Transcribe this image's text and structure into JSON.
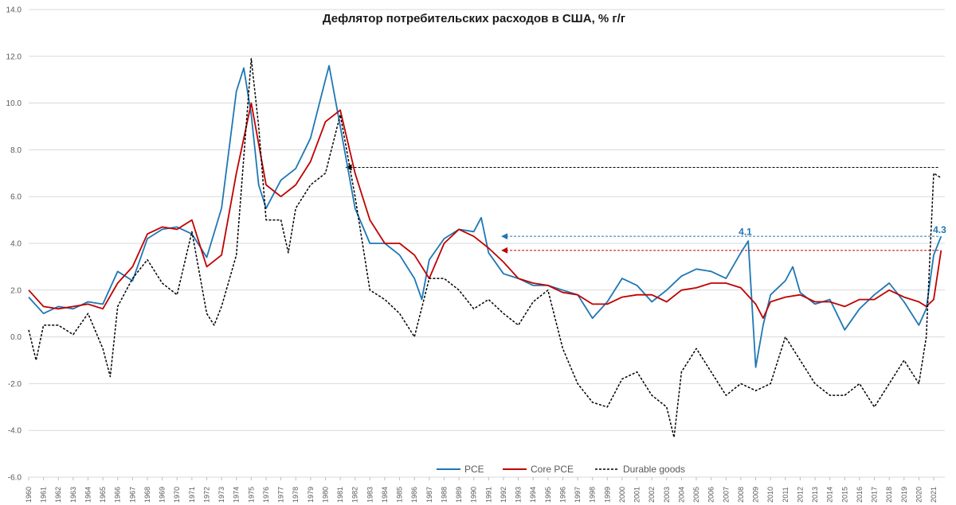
{
  "chart_data": {
    "type": "line",
    "title": "Дефлятор потребительских расходов в США, % г/г",
    "xlabel": "",
    "ylabel": "",
    "xlim": [
      1960,
      2021.75
    ],
    "ylim": [
      -6,
      14
    ],
    "y_ticks": [
      "-6.0",
      "-4.0",
      "-2.0",
      "0.0",
      "2.0",
      "4.0",
      "6.0",
      "8.0",
      "10.0",
      "12.0",
      "14.0"
    ],
    "x_ticks": [
      "1960",
      "1961",
      "1962",
      "1963",
      "1964",
      "1965",
      "1966",
      "1967",
      "1968",
      "1969",
      "1970",
      "1971",
      "1972",
      "1973",
      "1974",
      "1975",
      "1976",
      "1977",
      "1978",
      "1979",
      "1980",
      "1981",
      "1982",
      "1983",
      "1984",
      "1985",
      "1986",
      "1987",
      "1988",
      "1989",
      "1990",
      "1991",
      "1992",
      "1993",
      "1994",
      "1995",
      "1996",
      "1997",
      "1998",
      "1999",
      "2000",
      "2001",
      "2002",
      "2003",
      "2004",
      "2005",
      "2006",
      "2007",
      "2008",
      "2009",
      "2010",
      "2011",
      "2012",
      "2013",
      "2014",
      "2015",
      "2016",
      "2017",
      "2018",
      "2019",
      "2020",
      "2021"
    ],
    "grid": true,
    "legend_position": "bottom",
    "colors": {
      "pce": "#1f77b4",
      "core": "#c00000",
      "durable": "#000000",
      "grid": "#d9d9d9"
    },
    "series": [
      {
        "name": "PCE",
        "style": "solid",
        "x": [
          1960,
          1961,
          1962,
          1963,
          1964,
          1965,
          1966,
          1967,
          1968,
          1969,
          1970,
          1971,
          1972,
          1973,
          1974,
          1974.5,
          1975,
          1975.5,
          1976,
          1977,
          1978,
          1979,
          1980,
          1980.25,
          1981,
          1982,
          1983,
          1984,
          1985,
          1986,
          1986.5,
          1987,
          1988,
          1989,
          1990,
          1990.5,
          1991,
          1992,
          1993,
          1994,
          1995,
          1996,
          1997,
          1998,
          1999,
          2000,
          2001,
          2002,
          2003,
          2004,
          2005,
          2006,
          2007,
          2008,
          2008.5,
          2009,
          2009.5,
          2010,
          2011,
          2011.5,
          2012,
          2013,
          2014,
          2015,
          2016,
          2017,
          2018,
          2019,
          2020,
          2020.5,
          2021,
          2021.5
        ],
        "values": [
          1.7,
          1.0,
          1.3,
          1.2,
          1.5,
          1.4,
          2.8,
          2.4,
          4.2,
          4.6,
          4.7,
          4.4,
          3.4,
          5.5,
          10.5,
          11.5,
          9.5,
          6.5,
          5.5,
          6.7,
          7.2,
          8.5,
          11.0,
          11.6,
          9.0,
          5.5,
          4.0,
          4.0,
          3.5,
          2.5,
          1.6,
          3.3,
          4.2,
          4.6,
          4.5,
          5.1,
          3.6,
          2.7,
          2.5,
          2.2,
          2.2,
          2.0,
          1.8,
          0.8,
          1.5,
          2.5,
          2.2,
          1.5,
          2.0,
          2.6,
          2.9,
          2.8,
          2.5,
          3.6,
          4.1,
          -1.3,
          0.5,
          1.8,
          2.4,
          3.0,
          1.9,
          1.4,
          1.6,
          0.3,
          1.2,
          1.8,
          2.3,
          1.5,
          0.5,
          1.2,
          3.5,
          4.3
        ]
      },
      {
        "name": "Core PCE",
        "style": "solid",
        "x": [
          1960,
          1961,
          1962,
          1963,
          1964,
          1965,
          1966,
          1967,
          1968,
          1969,
          1970,
          1971,
          1972,
          1973,
          1974,
          1975,
          1976,
          1977,
          1978,
          1979,
          1980,
          1981,
          1982,
          1983,
          1984,
          1985,
          1986,
          1987,
          1988,
          1989,
          1990,
          1991,
          1992,
          1993,
          1994,
          1995,
          1996,
          1997,
          1998,
          1999,
          2000,
          2001,
          2002,
          2003,
          2004,
          2005,
          2006,
          2007,
          2008,
          2009,
          2009.5,
          2010,
          2011,
          2012,
          2013,
          2014,
          2015,
          2016,
          2017,
          2018,
          2019,
          2020,
          2020.5,
          2021,
          2021.5
        ],
        "values": [
          2.0,
          1.3,
          1.2,
          1.3,
          1.4,
          1.2,
          2.3,
          3.0,
          4.4,
          4.7,
          4.6,
          5.0,
          3.0,
          3.5,
          7.0,
          10.0,
          6.5,
          6.0,
          6.5,
          7.5,
          9.2,
          9.7,
          7.0,
          5.0,
          4.0,
          4.0,
          3.5,
          2.5,
          4.0,
          4.6,
          4.3,
          3.8,
          3.2,
          2.5,
          2.3,
          2.2,
          1.9,
          1.8,
          1.4,
          1.4,
          1.7,
          1.8,
          1.8,
          1.5,
          2.0,
          2.1,
          2.3,
          2.3,
          2.1,
          1.4,
          0.8,
          1.5,
          1.7,
          1.8,
          1.5,
          1.5,
          1.3,
          1.6,
          1.6,
          2.0,
          1.7,
          1.5,
          1.3,
          1.6,
          3.7
        ]
      },
      {
        "name": "Durable goods",
        "style": "dashed",
        "x": [
          1960,
          1960.5,
          1961,
          1962,
          1963,
          1964,
          1965,
          1965.5,
          1966,
          1967,
          1968,
          1969,
          1970,
          1971,
          1972,
          1972.5,
          1973,
          1974,
          1975,
          1975.5,
          1976,
          1977,
          1977.5,
          1978,
          1979,
          1980,
          1981,
          1982,
          1983,
          1984,
          1985,
          1986,
          1987,
          1988,
          1989,
          1990,
          1991,
          1992,
          1993,
          1994,
          1995,
          1996,
          1997,
          1998,
          1999,
          2000,
          2001,
          2002,
          2003,
          2003.5,
          2004,
          2005,
          2006,
          2007,
          2008,
          2009,
          2010,
          2011,
          2012,
          2013,
          2014,
          2015,
          2016,
          2017,
          2018,
          2019,
          2020,
          2020.5,
          2021,
          2021.5
        ],
        "values": [
          0.3,
          -1.0,
          0.5,
          0.5,
          0.1,
          1.0,
          -0.5,
          -1.7,
          1.3,
          2.5,
          3.3,
          2.3,
          1.8,
          4.5,
          1.0,
          0.5,
          1.3,
          3.5,
          11.9,
          9.0,
          5.0,
          5.0,
          3.6,
          5.5,
          6.5,
          7.0,
          9.5,
          6.0,
          2.0,
          1.6,
          1.0,
          0.0,
          2.5,
          2.5,
          2.0,
          1.2,
          1.6,
          1.0,
          0.5,
          1.5,
          2.0,
          -0.5,
          -2.0,
          -2.8,
          -3.0,
          -1.8,
          -1.5,
          -2.5,
          -3.0,
          -4.3,
          -1.5,
          -0.5,
          -1.5,
          -2.5,
          -2.0,
          -2.3,
          -2.0,
          0.0,
          -1.0,
          -2.0,
          -2.5,
          -2.5,
          -2.0,
          -3.0,
          -2.0,
          -1.0,
          -2.0,
          0.0,
          7.0,
          6.8
        ]
      }
    ],
    "annotations": [
      {
        "text": "4.1",
        "x": 2008.3,
        "y": 4.35,
        "color": "#1f77b4"
      },
      {
        "text": "4.3",
        "x": 2021.4,
        "y": 4.45,
        "color": "#1f77b4"
      }
    ],
    "reference_lines": [
      {
        "y": 7.25,
        "from_x": 1981.4,
        "to_x": 2021.4,
        "color": "#000000",
        "arrow_at": "start"
      },
      {
        "y": 4.3,
        "from_x": 1991.9,
        "to_x": 2021.4,
        "color": "#1f77b4",
        "arrow_at": "start"
      },
      {
        "y": 3.7,
        "from_x": 1991.9,
        "to_x": 2021.4,
        "color": "#c00000",
        "arrow_at": "start"
      }
    ]
  }
}
